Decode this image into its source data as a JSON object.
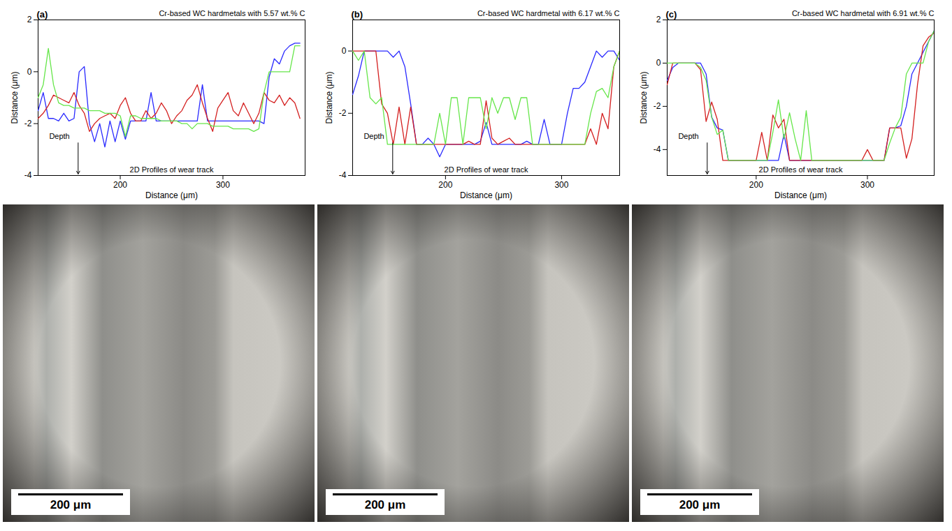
{
  "chart_data": [
    {
      "type": "line",
      "panel_label": "(a)",
      "title": "Cr-based WC hardmetals with 5.57 wt.% C",
      "xlabel": "Distance (μm)",
      "ylabel": "Distance (μm)",
      "annotations": [
        "Depth",
        "2D Profiles of wear track"
      ],
      "xlim": [
        120,
        380
      ],
      "xticks": [
        200,
        300
      ],
      "ylim": [
        -4,
        2
      ],
      "yticks": [
        -4,
        -2,
        0,
        2
      ],
      "x": [
        120,
        125,
        130,
        135,
        140,
        145,
        150,
        155,
        160,
        165,
        170,
        175,
        180,
        185,
        190,
        195,
        200,
        205,
        210,
        215,
        220,
        225,
        230,
        235,
        240,
        245,
        250,
        255,
        260,
        265,
        270,
        275,
        280,
        285,
        290,
        295,
        300,
        305,
        310,
        315,
        320,
        325,
        330,
        335,
        340,
        345,
        350,
        355,
        360,
        365,
        370,
        375
      ],
      "series": [
        {
          "color": "#2a2aff",
          "values": [
            -1.5,
            -0.8,
            -1.8,
            -1.8,
            -1.9,
            -1.6,
            -1.9,
            -1.8,
            0.0,
            0.2,
            -2.0,
            -2.7,
            -2.0,
            -2.9,
            -1.9,
            -2.7,
            -1.9,
            -2.6,
            -1.9,
            -1.9,
            -1.9,
            -1.9,
            -0.8,
            -1.9,
            -1.9,
            -1.9,
            -1.9,
            -1.9,
            -1.9,
            -1.9,
            -1.9,
            -1.9,
            -0.5,
            -1.9,
            -1.9,
            -1.9,
            -1.9,
            -1.9,
            -1.9,
            -1.9,
            -1.9,
            -1.9,
            -1.9,
            -1.9,
            -2.0,
            -0.2,
            0.5,
            0.3,
            0.8,
            1.0,
            1.1,
            1.1
          ]
        },
        {
          "color": "#d42020",
          "values": [
            -1.8,
            -1.6,
            -1.3,
            -0.9,
            -1.0,
            -1.1,
            -1.2,
            -0.8,
            -1.3,
            -1.6,
            -2.3,
            -2.0,
            -1.8,
            -1.7,
            -1.6,
            -1.8,
            -1.3,
            -1.0,
            -1.6,
            -1.9,
            -1.9,
            -1.5,
            -1.8,
            -1.6,
            -1.2,
            -1.5,
            -2.0,
            -1.7,
            -1.5,
            -1.1,
            -0.9,
            -0.5,
            -1.2,
            -1.8,
            -2.3,
            -1.4,
            -1.1,
            -0.8,
            -1.5,
            -1.7,
            -1.2,
            -1.6,
            -2.0,
            -1.6,
            -0.8,
            -1.1,
            -1.2,
            -0.9,
            -1.3,
            -1.0,
            -1.2,
            -1.8
          ]
        },
        {
          "color": "#66e64a",
          "values": [
            -1.0,
            -0.5,
            0.9,
            -0.5,
            -1.2,
            -1.3,
            -1.3,
            -1.4,
            -1.4,
            -1.4,
            -1.5,
            -1.5,
            -1.5,
            -1.6,
            -1.6,
            -1.6,
            -1.7,
            -2.5,
            -1.7,
            -1.7,
            -1.8,
            -1.8,
            -1.8,
            -1.8,
            -1.9,
            -1.9,
            -1.9,
            -1.9,
            -2.0,
            -2.0,
            -2.2,
            -2.0,
            -2.0,
            -2.0,
            -2.1,
            -2.1,
            -2.1,
            -2.1,
            -2.2,
            -2.2,
            -2.2,
            -2.2,
            -2.3,
            -2.2,
            -0.8,
            0.0,
            0.0,
            0.0,
            0.0,
            0.0,
            1.0,
            1.0
          ]
        }
      ]
    },
    {
      "type": "line",
      "panel_label": "(b)",
      "title": "Cr-based WC hardmetal with 6.17 wt.% C",
      "xlabel": "Distance (μm)",
      "ylabel": "Distance (μm)",
      "annotations": [
        "Depth",
        "2D Profiles of wear track"
      ],
      "xlim": [
        120,
        350
      ],
      "xticks": [
        200,
        300
      ],
      "ylim": [
        -4,
        1
      ],
      "yticks": [
        -4,
        -2,
        0
      ],
      "x": [
        120,
        125,
        130,
        135,
        140,
        145,
        150,
        155,
        160,
        165,
        170,
        175,
        180,
        185,
        190,
        195,
        200,
        205,
        210,
        215,
        220,
        225,
        230,
        235,
        240,
        245,
        250,
        255,
        260,
        265,
        270,
        275,
        280,
        285,
        290,
        295,
        300,
        305,
        310,
        315,
        320,
        325,
        330,
        335,
        340,
        345,
        350
      ],
      "series": [
        {
          "color": "#2a2aff",
          "values": [
            -1.4,
            -0.8,
            0,
            0,
            0,
            0,
            0,
            -0.2,
            0,
            -0.5,
            -1.7,
            -3.0,
            -3.0,
            -2.8,
            -3.0,
            -3.4,
            -3.0,
            -3.0,
            -3.0,
            -3.0,
            -3.0,
            -3.0,
            -2.9,
            -2.3,
            -3.0,
            -3.0,
            -3.0,
            -3.0,
            -3.0,
            -3.0,
            -2.9,
            -3.0,
            -3.0,
            -2.2,
            -3.0,
            -3.0,
            -3.0,
            -2.0,
            -1.2,
            -1.2,
            -1.0,
            -0.5,
            0,
            -0.2,
            0,
            0,
            -0.3
          ]
        },
        {
          "color": "#d42020",
          "values": [
            0,
            0,
            0,
            0,
            0,
            -1.7,
            -2.0,
            -3.0,
            -1.8,
            -3.0,
            -1.8,
            -3.0,
            -3.0,
            -3.0,
            -3.0,
            -3.0,
            -3.0,
            -3.0,
            -3.0,
            -3.0,
            -2.9,
            -3.0,
            -3.0,
            -1.6,
            -2.8,
            -3.0,
            -2.9,
            -2.8,
            -3.0,
            -3.0,
            -3.0,
            -3.0,
            -3.0,
            -3.0,
            -3.0,
            -3.0,
            -3.0,
            -3.0,
            -3.0,
            -3.0,
            -3.0,
            -2.5,
            -3.0,
            -2.0,
            -2.5,
            -0.5,
            0
          ]
        },
        {
          "color": "#66e64a",
          "values": [
            0,
            -0.3,
            0,
            -1.5,
            -1.7,
            -1.5,
            -3.0,
            -3.0,
            -3.0,
            -3.0,
            -3.0,
            -3.0,
            -3.0,
            -3.0,
            -3.0,
            -2.0,
            -3.0,
            -1.5,
            -1.5,
            -3.0,
            -1.5,
            -1.5,
            -1.5,
            -2.5,
            -1.5,
            -2.0,
            -1.5,
            -1.5,
            -2.2,
            -1.5,
            -1.5,
            -3.0,
            -3.0,
            -3.0,
            -3.0,
            -3.0,
            -3.0,
            -3.0,
            -3.0,
            -3.0,
            -3.0,
            -2.0,
            -1.3,
            -1.2,
            -1.5,
            -0.5,
            0
          ]
        }
      ]
    },
    {
      "type": "line",
      "panel_label": "(c)",
      "title": "Cr-based WC hardmetal with 6.91 wt.% C",
      "xlabel": "Distance (μm)",
      "ylabel": "Distance (μm)",
      "annotations": [
        "Depth",
        "2D Profiles of wear track"
      ],
      "xlim": [
        120,
        360
      ],
      "xticks": [
        200,
        300
      ],
      "ylim": [
        -5.2,
        2
      ],
      "yticks": [
        -4,
        -2,
        0,
        2
      ],
      "x": [
        120,
        125,
        130,
        135,
        140,
        145,
        150,
        155,
        160,
        165,
        170,
        175,
        180,
        185,
        190,
        195,
        200,
        205,
        210,
        215,
        220,
        225,
        230,
        235,
        240,
        245,
        250,
        255,
        260,
        265,
        270,
        275,
        280,
        285,
        290,
        295,
        300,
        305,
        310,
        315,
        320,
        325,
        330,
        335,
        340,
        345,
        350,
        355,
        360
      ],
      "series": [
        {
          "color": "#2a2aff",
          "values": [
            -0.8,
            -0.2,
            0,
            0,
            0,
            0,
            0,
            -0.5,
            -2.5,
            -3.0,
            -3.1,
            -4.5,
            -4.5,
            -4.5,
            -4.5,
            -4.5,
            -4.5,
            -4.5,
            -4.5,
            -4.5,
            -4.5,
            -3.3,
            -4.5,
            -4.5,
            -4.5,
            -4.5,
            -4.5,
            -4.5,
            -4.5,
            -4.5,
            -4.5,
            -4.5,
            -4.5,
            -4.5,
            -4.5,
            -4.5,
            -4.5,
            -4.5,
            -4.5,
            -4.5,
            -3.0,
            -3.0,
            -2.9,
            -2.0,
            -0.5,
            0,
            0.5,
            1.0,
            1.5
          ]
        },
        {
          "color": "#d42020",
          "values": [
            -1.0,
            0,
            0,
            0,
            0,
            0,
            -0.3,
            -2.7,
            -1.8,
            -2.6,
            -4.5,
            -4.5,
            -4.5,
            -4.5,
            -4.5,
            -4.5,
            -4.5,
            -3.2,
            -4.5,
            -2.4,
            -3.0,
            -2.6,
            -4.5,
            -4.5,
            -4.5,
            -4.5,
            -4.5,
            -4.5,
            -4.5,
            -4.5,
            -4.5,
            -4.5,
            -4.5,
            -4.5,
            -4.5,
            -4.5,
            -4.0,
            -4.5,
            -4.5,
            -4.5,
            -3.0,
            -3.0,
            -3.0,
            -4.4,
            -3.5,
            -1.0,
            0.8,
            1.2,
            1.4
          ]
        },
        {
          "color": "#66e64a",
          "values": [
            0,
            0,
            0,
            0,
            0,
            0,
            -0.2,
            -0.8,
            -2.5,
            -3.3,
            -3.1,
            -4.5,
            -4.5,
            -4.5,
            -4.5,
            -4.5,
            -4.5,
            -4.5,
            -4.5,
            -3.2,
            -1.7,
            -3.5,
            -2.3,
            -3.5,
            -4.5,
            -2.2,
            -4.5,
            -4.5,
            -4.5,
            -4.5,
            -4.5,
            -4.5,
            -4.5,
            -4.5,
            -4.5,
            -4.5,
            -4.5,
            -4.5,
            -4.5,
            -4.5,
            -3.7,
            -3.0,
            -2.5,
            -0.5,
            0,
            0,
            0,
            1.0,
            1.5
          ]
        }
      ]
    }
  ],
  "micrographs": [
    {
      "scale_bar": "200 μm"
    },
    {
      "scale_bar": "200 μm"
    },
    {
      "scale_bar": "200 μm"
    }
  ]
}
